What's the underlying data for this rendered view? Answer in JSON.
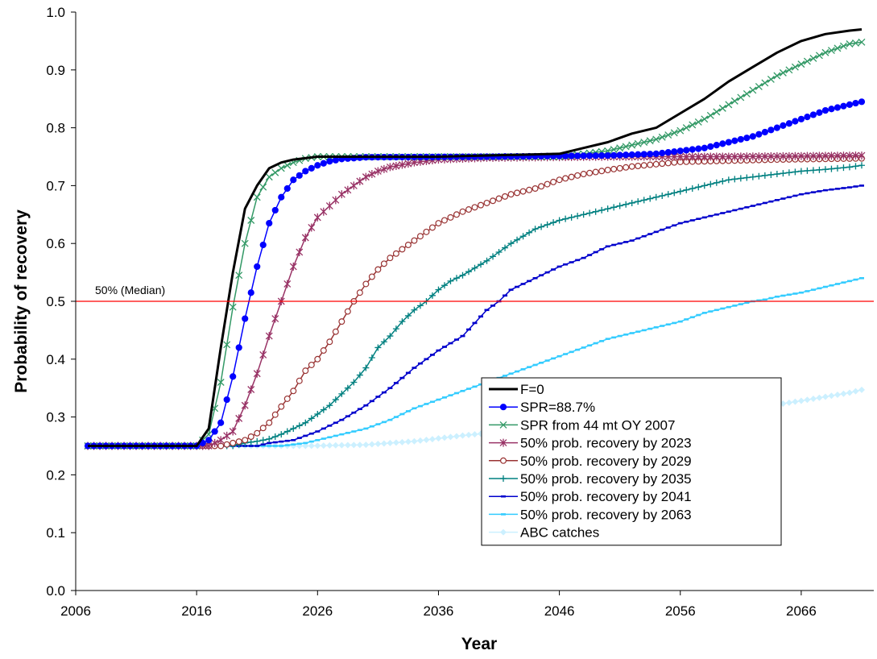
{
  "chart_data": {
    "type": "line",
    "title": "",
    "xlabel": "Year",
    "ylabel": "Probability of recovery",
    "xlim": [
      2006,
      2072
    ],
    "ylim": [
      0,
      1
    ],
    "xticks": [
      "2006",
      "2016",
      "2026",
      "2036",
      "2046",
      "2056",
      "2066"
    ],
    "yticks": [
      "0.0",
      "0.1",
      "0.2",
      "0.3",
      "0.4",
      "0.5",
      "0.6",
      "0.7",
      "0.8",
      "0.9",
      "1.0"
    ],
    "grid": false,
    "legend_position": "bottom-right",
    "reference_line": {
      "y": 0.5,
      "label": "50% (Median)",
      "color": "#ff0000"
    },
    "series": [
      {
        "name": "F=0",
        "color": "#000000",
        "marker": "none",
        "width": 3,
        "points": [
          [
            2007,
            0.25
          ],
          [
            2016,
            0.25
          ],
          [
            2017,
            0.28
          ],
          [
            2018,
            0.42
          ],
          [
            2019,
            0.55
          ],
          [
            2020,
            0.66
          ],
          [
            2021,
            0.7
          ],
          [
            2022,
            0.73
          ],
          [
            2023,
            0.74
          ],
          [
            2024,
            0.745
          ],
          [
            2026,
            0.75
          ],
          [
            2036,
            0.75
          ],
          [
            2046,
            0.755
          ],
          [
            2048,
            0.765
          ],
          [
            2050,
            0.775
          ],
          [
            2052,
            0.79
          ],
          [
            2054,
            0.8
          ],
          [
            2056,
            0.825
          ],
          [
            2058,
            0.85
          ],
          [
            2060,
            0.88
          ],
          [
            2062,
            0.905
          ],
          [
            2064,
            0.93
          ],
          [
            2066,
            0.95
          ],
          [
            2068,
            0.962
          ],
          [
            2070,
            0.968
          ],
          [
            2071,
            0.97
          ]
        ]
      },
      {
        "name": "SPR=88.7%",
        "color": "#0000ff",
        "marker": "dot",
        "width": 1.5,
        "points": [
          [
            2007,
            0.25
          ],
          [
            2016,
            0.25
          ],
          [
            2017,
            0.26
          ],
          [
            2018,
            0.29
          ],
          [
            2019,
            0.37
          ],
          [
            2020,
            0.47
          ],
          [
            2021,
            0.56
          ],
          [
            2022,
            0.635
          ],
          [
            2023,
            0.68
          ],
          [
            2024,
            0.71
          ],
          [
            2025,
            0.725
          ],
          [
            2026,
            0.735
          ],
          [
            2027,
            0.742
          ],
          [
            2028,
            0.746
          ],
          [
            2030,
            0.749
          ],
          [
            2040,
            0.75
          ],
          [
            2050,
            0.752
          ],
          [
            2054,
            0.755
          ],
          [
            2056,
            0.76
          ],
          [
            2058,
            0.765
          ],
          [
            2060,
            0.775
          ],
          [
            2062,
            0.785
          ],
          [
            2064,
            0.8
          ],
          [
            2066,
            0.815
          ],
          [
            2068,
            0.83
          ],
          [
            2070,
            0.84
          ],
          [
            2071,
            0.845
          ]
        ]
      },
      {
        "name": "SPR from 44 mt OY 2007",
        "color": "#339966",
        "marker": "x",
        "width": 1.5,
        "points": [
          [
            2007,
            0.25
          ],
          [
            2016,
            0.25
          ],
          [
            2017,
            0.27
          ],
          [
            2018,
            0.36
          ],
          [
            2019,
            0.49
          ],
          [
            2020,
            0.6
          ],
          [
            2021,
            0.68
          ],
          [
            2022,
            0.715
          ],
          [
            2023,
            0.73
          ],
          [
            2024,
            0.74
          ],
          [
            2025,
            0.747
          ],
          [
            2026,
            0.75
          ],
          [
            2046,
            0.75
          ],
          [
            2048,
            0.755
          ],
          [
            2050,
            0.76
          ],
          [
            2052,
            0.77
          ],
          [
            2054,
            0.78
          ],
          [
            2056,
            0.795
          ],
          [
            2058,
            0.815
          ],
          [
            2060,
            0.84
          ],
          [
            2062,
            0.865
          ],
          [
            2064,
            0.89
          ],
          [
            2066,
            0.91
          ],
          [
            2068,
            0.93
          ],
          [
            2070,
            0.945
          ],
          [
            2071,
            0.948
          ]
        ]
      },
      {
        "name": "50% prob. recovery by 2023",
        "color": "#993366",
        "marker": "star",
        "width": 1.5,
        "points": [
          [
            2007,
            0.25
          ],
          [
            2017,
            0.25
          ],
          [
            2018,
            0.26
          ],
          [
            2019,
            0.275
          ],
          [
            2020,
            0.32
          ],
          [
            2021,
            0.375
          ],
          [
            2022,
            0.44
          ],
          [
            2023,
            0.5
          ],
          [
            2024,
            0.56
          ],
          [
            2025,
            0.61
          ],
          [
            2026,
            0.645
          ],
          [
            2027,
            0.665
          ],
          [
            2028,
            0.685
          ],
          [
            2029,
            0.7
          ],
          [
            2030,
            0.715
          ],
          [
            2031,
            0.725
          ],
          [
            2032,
            0.732
          ],
          [
            2034,
            0.74
          ],
          [
            2036,
            0.745
          ],
          [
            2040,
            0.748
          ],
          [
            2050,
            0.75
          ],
          [
            2060,
            0.75
          ],
          [
            2071,
            0.752
          ]
        ]
      },
      {
        "name": "50% prob. recovery by 2029",
        "color": "#993333",
        "marker": "circle",
        "width": 1.5,
        "points": [
          [
            2007,
            0.25
          ],
          [
            2018,
            0.25
          ],
          [
            2019,
            0.255
          ],
          [
            2020,
            0.26
          ],
          [
            2021,
            0.272
          ],
          [
            2022,
            0.29
          ],
          [
            2023,
            0.318
          ],
          [
            2024,
            0.345
          ],
          [
            2025,
            0.38
          ],
          [
            2026,
            0.4
          ],
          [
            2027,
            0.43
          ],
          [
            2028,
            0.465
          ],
          [
            2029,
            0.5
          ],
          [
            2030,
            0.53
          ],
          [
            2031,
            0.555
          ],
          [
            2032,
            0.575
          ],
          [
            2033,
            0.59
          ],
          [
            2034,
            0.605
          ],
          [
            2035,
            0.62
          ],
          [
            2036,
            0.635
          ],
          [
            2037,
            0.645
          ],
          [
            2038,
            0.655
          ],
          [
            2040,
            0.67
          ],
          [
            2042,
            0.685
          ],
          [
            2044,
            0.695
          ],
          [
            2046,
            0.71
          ],
          [
            2048,
            0.72
          ],
          [
            2050,
            0.727
          ],
          [
            2052,
            0.733
          ],
          [
            2054,
            0.737
          ],
          [
            2056,
            0.741
          ],
          [
            2060,
            0.743
          ],
          [
            2064,
            0.745
          ],
          [
            2071,
            0.747
          ]
        ]
      },
      {
        "name": "50% prob. recovery by 2035",
        "color": "#008080",
        "marker": "plus",
        "width": 1.5,
        "points": [
          [
            2007,
            0.25
          ],
          [
            2019,
            0.25
          ],
          [
            2020,
            0.255
          ],
          [
            2021,
            0.258
          ],
          [
            2022,
            0.262
          ],
          [
            2023,
            0.27
          ],
          [
            2024,
            0.28
          ],
          [
            2025,
            0.29
          ],
          [
            2026,
            0.305
          ],
          [
            2027,
            0.32
          ],
          [
            2028,
            0.34
          ],
          [
            2029,
            0.36
          ],
          [
            2030,
            0.385
          ],
          [
            2031,
            0.42
          ],
          [
            2032,
            0.44
          ],
          [
            2033,
            0.465
          ],
          [
            2034,
            0.485
          ],
          [
            2035,
            0.5
          ],
          [
            2036,
            0.52
          ],
          [
            2037,
            0.535
          ],
          [
            2038,
            0.545
          ],
          [
            2040,
            0.57
          ],
          [
            2042,
            0.6
          ],
          [
            2044,
            0.625
          ],
          [
            2046,
            0.64
          ],
          [
            2048,
            0.65
          ],
          [
            2050,
            0.66
          ],
          [
            2052,
            0.67
          ],
          [
            2054,
            0.68
          ],
          [
            2056,
            0.69
          ],
          [
            2058,
            0.7
          ],
          [
            2060,
            0.71
          ],
          [
            2062,
            0.715
          ],
          [
            2064,
            0.72
          ],
          [
            2066,
            0.725
          ],
          [
            2068,
            0.728
          ],
          [
            2070,
            0.732
          ],
          [
            2071,
            0.735
          ]
        ]
      },
      {
        "name": "50% prob. recovery by 2041",
        "color": "#0000cc",
        "marker": "dash",
        "width": 1.5,
        "points": [
          [
            2007,
            0.25
          ],
          [
            2021,
            0.25
          ],
          [
            2022,
            0.255
          ],
          [
            2024,
            0.26
          ],
          [
            2026,
            0.275
          ],
          [
            2028,
            0.295
          ],
          [
            2030,
            0.32
          ],
          [
            2032,
            0.35
          ],
          [
            2034,
            0.385
          ],
          [
            2036,
            0.415
          ],
          [
            2038,
            0.44
          ],
          [
            2040,
            0.485
          ],
          [
            2041,
            0.5
          ],
          [
            2042,
            0.52
          ],
          [
            2044,
            0.54
          ],
          [
            2046,
            0.56
          ],
          [
            2048,
            0.575
          ],
          [
            2050,
            0.595
          ],
          [
            2052,
            0.605
          ],
          [
            2054,
            0.62
          ],
          [
            2056,
            0.635
          ],
          [
            2058,
            0.645
          ],
          [
            2060,
            0.655
          ],
          [
            2062,
            0.665
          ],
          [
            2064,
            0.675
          ],
          [
            2066,
            0.685
          ],
          [
            2068,
            0.692
          ],
          [
            2070,
            0.697
          ],
          [
            2071,
            0.7
          ]
        ]
      },
      {
        "name": "50% prob. recovery by 2063",
        "color": "#33ccff",
        "marker": "dash",
        "width": 1.5,
        "points": [
          [
            2007,
            0.25
          ],
          [
            2023,
            0.25
          ],
          [
            2025,
            0.255
          ],
          [
            2027,
            0.265
          ],
          [
            2030,
            0.28
          ],
          [
            2032,
            0.295
          ],
          [
            2034,
            0.315
          ],
          [
            2036,
            0.33
          ],
          [
            2038,
            0.345
          ],
          [
            2040,
            0.36
          ],
          [
            2042,
            0.375
          ],
          [
            2044,
            0.39
          ],
          [
            2046,
            0.405
          ],
          [
            2048,
            0.42
          ],
          [
            2050,
            0.435
          ],
          [
            2052,
            0.445
          ],
          [
            2054,
            0.455
          ],
          [
            2056,
            0.465
          ],
          [
            2058,
            0.48
          ],
          [
            2060,
            0.49
          ],
          [
            2062,
            0.5
          ],
          [
            2063,
            0.503
          ],
          [
            2064,
            0.508
          ],
          [
            2066,
            0.515
          ],
          [
            2068,
            0.525
          ],
          [
            2070,
            0.535
          ],
          [
            2071,
            0.54
          ]
        ]
      },
      {
        "name": "ABC catches",
        "color": "#ccf0ff",
        "marker": "diamond",
        "width": 1.5,
        "points": [
          [
            2007,
            0.25
          ],
          [
            2025,
            0.25
          ],
          [
            2030,
            0.252
          ],
          [
            2034,
            0.258
          ],
          [
            2038,
            0.268
          ],
          [
            2042,
            0.276
          ],
          [
            2046,
            0.284
          ],
          [
            2050,
            0.29
          ],
          [
            2054,
            0.296
          ],
          [
            2058,
            0.305
          ],
          [
            2062,
            0.315
          ],
          [
            2066,
            0.328
          ],
          [
            2070,
            0.342
          ],
          [
            2071,
            0.347
          ]
        ]
      }
    ]
  }
}
